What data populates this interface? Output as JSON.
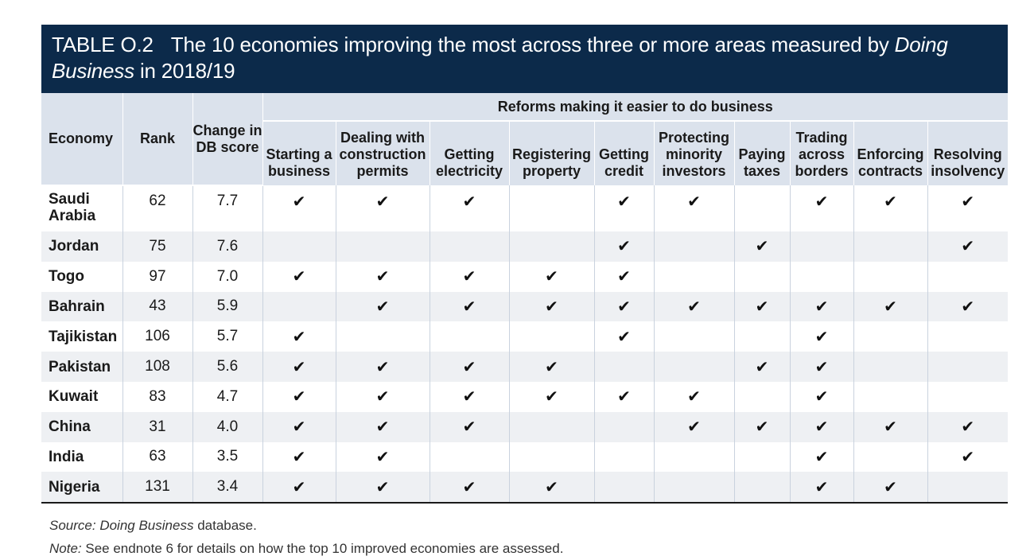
{
  "title": {
    "label": "TABLE O.2",
    "text_before": "The 10 economies improving the most across three or more areas measured by",
    "text_italic": "Doing Business",
    "text_after": "in 2018/19"
  },
  "table": {
    "group_header": "Reforms making it easier to do business",
    "col_economy": "Economy",
    "col_rank": "Rank",
    "col_change": "Change in DB score",
    "reform_cols": [
      "Starting a business",
      "Dealing with construction permits",
      "Getting electricity",
      "Registering property",
      "Getting credit",
      "Protecting minority investors",
      "Paying taxes",
      "Trading across borders",
      "Enforcing contracts",
      "Resolving insolvency"
    ],
    "check_symbol": "✔",
    "rows": [
      {
        "economy": "Saudi Arabia",
        "rank": "62",
        "change": "7.7",
        "reforms": [
          1,
          1,
          1,
          0,
          1,
          1,
          0,
          1,
          1,
          1
        ]
      },
      {
        "economy": "Jordan",
        "rank": "75",
        "change": "7.6",
        "reforms": [
          0,
          0,
          0,
          0,
          1,
          0,
          1,
          0,
          0,
          1
        ]
      },
      {
        "economy": "Togo",
        "rank": "97",
        "change": "7.0",
        "reforms": [
          1,
          1,
          1,
          1,
          1,
          0,
          0,
          0,
          0,
          0
        ]
      },
      {
        "economy": "Bahrain",
        "rank": "43",
        "change": "5.9",
        "reforms": [
          0,
          1,
          1,
          1,
          1,
          1,
          1,
          1,
          1,
          1
        ]
      },
      {
        "economy": "Tajikistan",
        "rank": "106",
        "change": "5.7",
        "reforms": [
          1,
          0,
          0,
          0,
          1,
          0,
          0,
          1,
          0,
          0
        ]
      },
      {
        "economy": "Pakistan",
        "rank": "108",
        "change": "5.6",
        "reforms": [
          1,
          1,
          1,
          1,
          0,
          0,
          1,
          1,
          0,
          0
        ]
      },
      {
        "economy": "Kuwait",
        "rank": "83",
        "change": "4.7",
        "reforms": [
          1,
          1,
          1,
          1,
          1,
          1,
          0,
          1,
          0,
          0
        ]
      },
      {
        "economy": "China",
        "rank": "31",
        "change": "4.0",
        "reforms": [
          1,
          1,
          1,
          0,
          0,
          1,
          1,
          1,
          1,
          1
        ]
      },
      {
        "economy": "India",
        "rank": "63",
        "change": "3.5",
        "reforms": [
          1,
          1,
          0,
          0,
          0,
          0,
          0,
          1,
          0,
          1
        ]
      },
      {
        "economy": "Nigeria",
        "rank": "131",
        "change": "3.4",
        "reforms": [
          1,
          1,
          1,
          1,
          0,
          0,
          0,
          1,
          1,
          0
        ]
      }
    ]
  },
  "notes": {
    "source_label": "Source:",
    "source_italic": "Doing Business",
    "source_rest": "database.",
    "note_label": "Note:",
    "note_text": "See endnote 6 for details on how the top 10 improved economies are assessed."
  }
}
